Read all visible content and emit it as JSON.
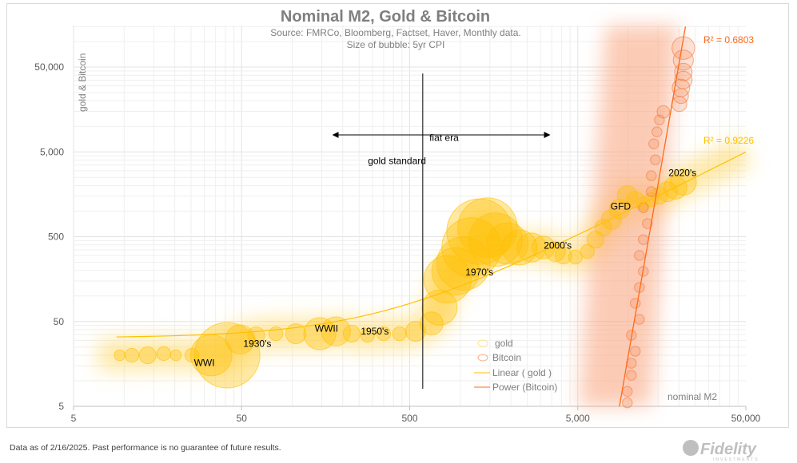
{
  "chart_data": {
    "type": "scatter",
    "title": "Nominal M2, Gold & Bitcoin",
    "subtitle": [
      "Source: FMRCo, Bloomberg, Factset, Haver, Monthly data.",
      "Size of bubble: 5yr CPI"
    ],
    "xlabel": "nominal M2",
    "ylabel": "gold & Bitcoin",
    "x_scale": "log",
    "y_scale": "log",
    "xlim": [
      5,
      50000
    ],
    "ylim": [
      5,
      150000
    ],
    "x_ticks": [
      5,
      50,
      500,
      5000,
      50000
    ],
    "x_tick_labels": [
      "5",
      "50",
      "500",
      "5,000",
      "50,000"
    ],
    "y_ticks": [
      5,
      50,
      500,
      5000,
      50000
    ],
    "y_tick_labels": [
      "5",
      "50",
      "500",
      "5,000",
      "50,000"
    ],
    "grid": true,
    "legend_placement": "bottom-right",
    "legend": [
      "gold",
      "Bitcoin",
      "Linear ( gold )",
      "Power (Bitcoin)"
    ],
    "colors": {
      "gold": "#ffc000",
      "bitcoin": "#f4763a",
      "gold_trend": "#ffc000",
      "bitcoin_trend": "#ff6a1a"
    },
    "series": [
      {
        "name": "gold",
        "x": [
          9.4,
          11.1,
          13.8,
          17.2,
          20.3,
          25.3,
          33,
          41,
          49,
          61,
          80,
          105,
          146,
          182,
          226,
          281,
          350,
          435,
          542,
          675,
          753,
          840,
          937,
          1045,
          1167,
          1302,
          1453,
          1621,
          1909,
          2250,
          2652,
          3124,
          3682,
          4110,
          4842,
          5706,
          6370,
          7107,
          7925,
          8850,
          9860,
          11000,
          12280,
          13700,
          15300,
          17060,
          19040,
          21240
        ],
        "y": [
          20,
          20,
          20,
          20.9,
          20,
          20,
          20,
          20,
          30.8,
          34.4,
          35.9,
          35.9,
          35.9,
          38.3,
          35.9,
          34.4,
          35.9,
          35.9,
          38.3,
          47.5,
          73,
          157,
          195,
          241,
          373,
          574,
          640,
          462,
          415,
          373,
          373,
          373,
          334,
          300,
          287,
          334,
          462,
          640,
          795,
          1054,
          1523,
          1367,
          1225,
          1367,
          1523,
          1698,
          1892,
          2198
        ],
        "size_5yr_cpi": [
          2,
          3,
          4,
          3,
          2,
          3,
          12,
          20,
          8,
          4,
          3,
          5,
          9,
          8,
          4,
          3,
          3,
          3,
          5,
          6,
          10,
          14,
          14,
          16,
          18,
          20,
          18,
          16,
          12,
          10,
          8,
          6,
          5,
          4,
          3,
          3,
          4,
          4,
          5,
          5,
          5,
          4,
          3,
          3,
          4,
          5,
          6,
          7
        ]
      },
      {
        "name": "Bitcoin",
        "x": [
          9860,
          9860,
          10420,
          10420,
          11000,
          10420,
          11630,
          11000,
          11630,
          12280,
          11630,
          12280,
          12970,
          12280,
          13700,
          13700,
          14480,
          14160,
          14800,
          15300,
          16150,
          20100,
          20560,
          20560,
          21240,
          21240,
          21240,
          21240
        ],
        "y": [
          5.5,
          7.5,
          11.6,
          16.1,
          22.3,
          34.4,
          53,
          82,
          126,
          195,
          300,
          462,
          713,
          1100,
          1698,
          2618,
          4035,
          6220,
          8610,
          11900,
          14800,
          18370,
          22800,
          28350,
          35200,
          43700,
          60500,
          83700
        ],
        "size_5yr_cpi": [
          2,
          2,
          2,
          2,
          2,
          2,
          2,
          2,
          2,
          2,
          2,
          2,
          2,
          2,
          2,
          2,
          2,
          2,
          2,
          2,
          3,
          4,
          4,
          5,
          5,
          5,
          6,
          7
        ]
      }
    ],
    "trendlines": [
      {
        "name": "Linear ( gold )",
        "type": "linear",
        "slope": 0.099,
        "intercept": 32,
        "r2_label": "R² = 0.9226"
      },
      {
        "name": "Power (Bitcoin)",
        "type": "power",
        "coef_at_8850": 5,
        "exponent": 11.4,
        "r2_label": "R² = 0.6803"
      }
    ],
    "annotations": [
      {
        "text": "WWI",
        "x": 30,
        "y": 15
      },
      {
        "text": "1930's",
        "x": 62,
        "y": 25
      },
      {
        "text": "WWII",
        "x": 160,
        "y": 38
      },
      {
        "text": "1950's",
        "x": 310,
        "y": 35
      },
      {
        "text": "1970's",
        "x": 1300,
        "y": 175
      },
      {
        "text": "2000's",
        "x": 3800,
        "y": 360
      },
      {
        "text": "GFD",
        "x": 9000,
        "y": 1050
      },
      {
        "text": "2020's",
        "x": 21000,
        "y": 2600
      },
      {
        "text": "fiat era",
        "x": 800,
        "y": 6700
      },
      {
        "text": "gold standard",
        "x": 420,
        "y": 3600
      }
    ],
    "divider_x": 598,
    "arrow_range": [
      175,
      3400
    ]
  },
  "footer": {
    "disclaimer": "Data as of 2/16/2025. Past performance is no guarantee of future results.",
    "logo": "Fidelity INVESTMENTS"
  }
}
